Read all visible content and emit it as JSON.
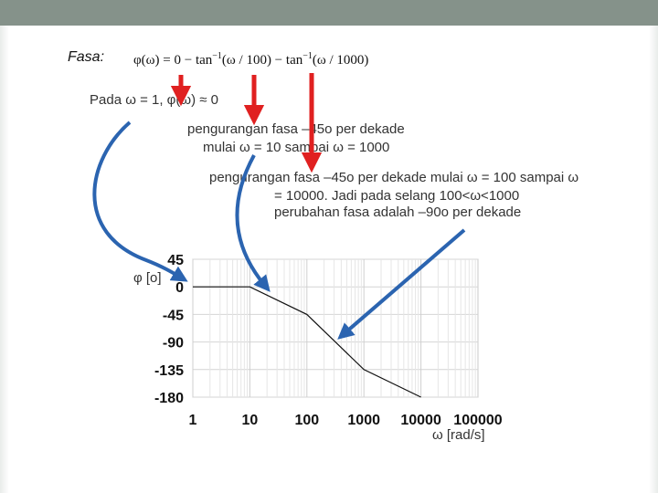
{
  "slide": {
    "fasa_label": "Fasa:",
    "formula": {
      "part1": "φ(ω) = 0 − tan",
      "sup1": "−1",
      "part2": "(ω / 100) − tan",
      "sup2": "−1",
      "part3": "(ω / 1000)"
    },
    "pada_text": "Pada ω = 1, φ(ω) ≈ 0",
    "note1_line1": "pengurangan fasa –45o per dekade",
    "note1_line2": "mulai ω = 10 sampai  ω = 1000",
    "note2_line1": "pengurangan fasa –45o per dekade mulai ω = 100 sampai  ω",
    "note2_line2": "= 10000. Jadi pada selang 100<ω<1000",
    "note2_line3": "perubahan fasa adalah –90o per dekade"
  },
  "colors": {
    "arrow_red": "#e02020",
    "arrow_blue": "#2b64b0",
    "header": "#85928a"
  },
  "chart_data": {
    "type": "line",
    "xscale": "log",
    "x_ticks": [
      "1",
      "10",
      "100",
      "1000",
      "10000",
      "100000"
    ],
    "y_ticks": [
      "45",
      "0",
      "-45",
      "-90",
      "-135",
      "-180"
    ],
    "ylim": [
      -180,
      45
    ],
    "xlim": [
      1,
      100000
    ],
    "xlabel": "ω [rad/s]",
    "ylabel": "φ [o]",
    "grid": true,
    "series": [
      {
        "x": [
          1,
          10,
          100,
          1000,
          10000
        ],
        "y": [
          0,
          0,
          -45,
          -135,
          -180
        ]
      }
    ]
  }
}
